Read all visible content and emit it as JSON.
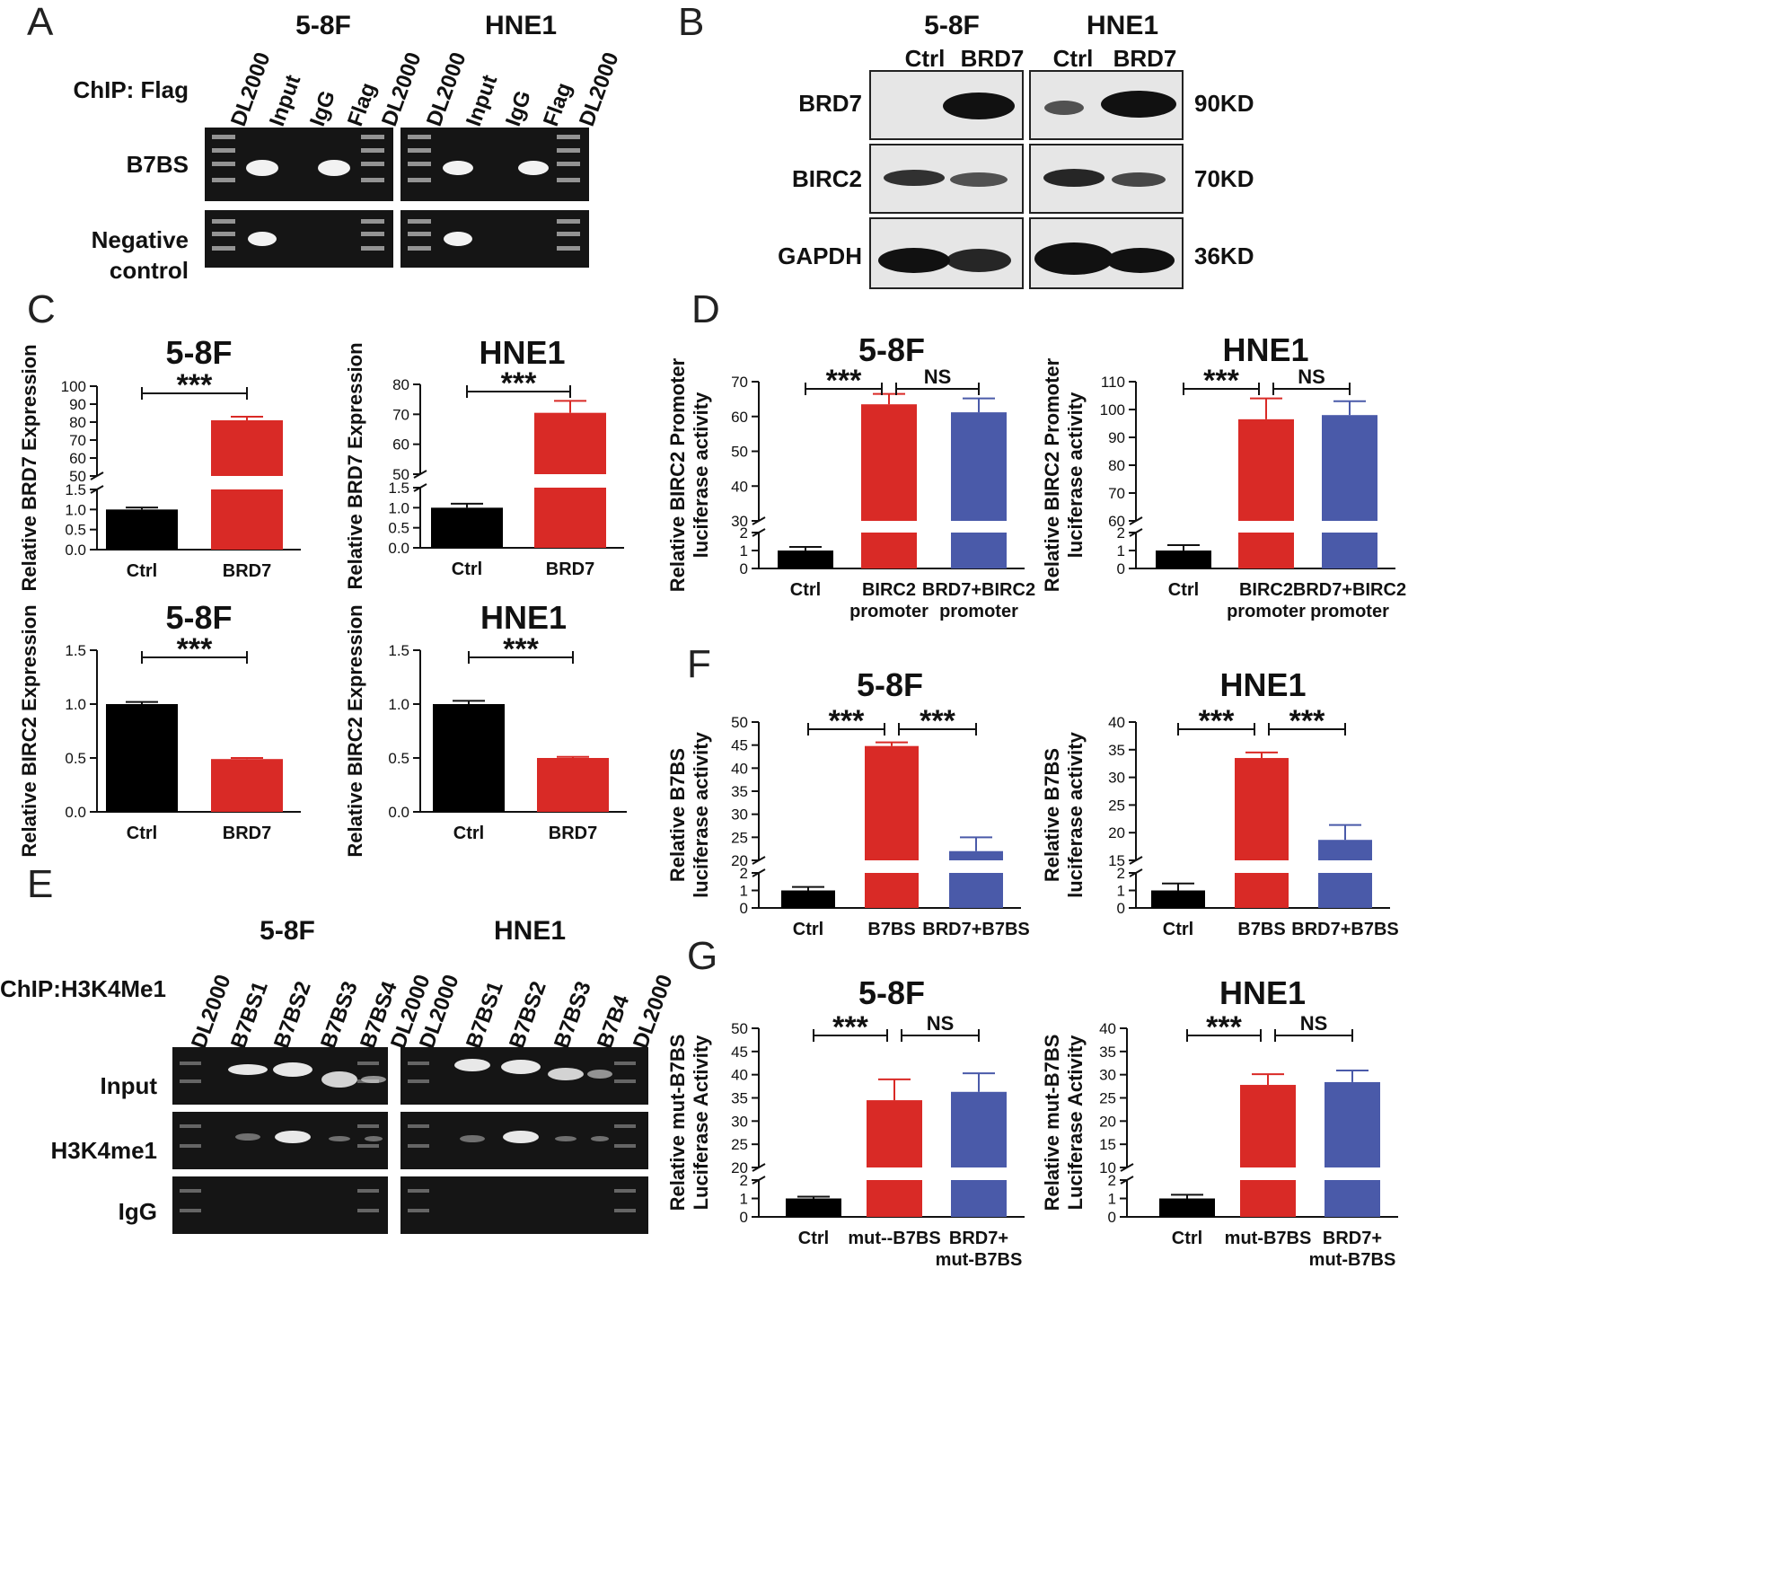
{
  "panel_letters": [
    "A",
    "B",
    "C",
    "D",
    "E",
    "F",
    "G"
  ],
  "panelA": {
    "cell_lines": [
      "5-8F",
      "HNE1"
    ],
    "chip_label": "ChIP: Flag",
    "lanes": [
      "DL2000",
      "Input",
      "IgG",
      "Flag",
      "DL2000"
    ],
    "rows": [
      "B7BS",
      "Negative control"
    ]
  },
  "panelB": {
    "cell_lines": [
      "5-8F",
      "HNE1"
    ],
    "conditions": [
      "Ctrl",
      "BRD7"
    ],
    "proteins": [
      {
        "name": "BRD7",
        "kd": "90KD"
      },
      {
        "name": "BIRC2",
        "kd": "70KD"
      },
      {
        "name": "GAPDH",
        "kd": "36KD"
      }
    ]
  },
  "panelE": {
    "cell_lines": [
      "5-8F",
      "HNE1"
    ],
    "chip_label": "ChIP:H3K4Me1",
    "lanes_5_8F": [
      "DL2000",
      "B7BS1",
      "B7BS2",
      "B7BS3",
      "B7BS4",
      "DL2000"
    ],
    "lanes_HNE1": [
      "DL2000",
      "B7BS1",
      "B7BS2",
      "B7BS3",
      "B7B4",
      "DL2000"
    ],
    "rows": [
      "Input",
      "H3K4me1",
      "IgG"
    ]
  },
  "colors": {
    "ctrl": "#000000",
    "red": "#d92a26",
    "blue": "#4a5aa9"
  },
  "chart_data": [
    {
      "id": "C1",
      "type": "bar",
      "title": "5-8F",
      "ylabel": "Relative BRD7 Expression",
      "categories": [
        "Ctrl",
        "BRD7"
      ],
      "values": [
        1.0,
        81
      ],
      "errors": [
        0.05,
        2
      ],
      "colors": [
        "ctrl",
        "red"
      ],
      "broken_axis": {
        "lower": [
          0,
          1.5
        ],
        "upper": [
          50,
          100
        ]
      },
      "lower_ticks": [
        "0.0",
        "0.5",
        "1.0",
        "1.5"
      ],
      "upper_ticks": [
        "50",
        "60",
        "70",
        "80",
        "90",
        "100"
      ],
      "significance": [
        {
          "from": 0,
          "to": 1,
          "label": "***"
        }
      ]
    },
    {
      "id": "C2",
      "type": "bar",
      "title": "HNE1",
      "ylabel": "Relative BRD7 Expression",
      "categories": [
        "Ctrl",
        "BRD7"
      ],
      "values": [
        1.0,
        70.5
      ],
      "errors": [
        0.1,
        4
      ],
      "colors": [
        "ctrl",
        "red"
      ],
      "broken_axis": {
        "lower": [
          0,
          1.5
        ],
        "upper": [
          50,
          80
        ]
      },
      "lower_ticks": [
        "0.0",
        "0.5",
        "1.0",
        "1.5"
      ],
      "upper_ticks": [
        "50",
        "60",
        "70",
        "80"
      ],
      "significance": [
        {
          "from": 0,
          "to": 1,
          "label": "***"
        }
      ]
    },
    {
      "id": "C3",
      "type": "bar",
      "title": "5-8F",
      "ylabel": "Relative BIRC2 Expression",
      "categories": [
        "Ctrl",
        "BRD7"
      ],
      "values": [
        1.0,
        0.49
      ],
      "errors": [
        0.02,
        0.01
      ],
      "colors": [
        "ctrl",
        "red"
      ],
      "ylim": [
        0,
        1.5
      ],
      "ticks": [
        "0.0",
        "0.5",
        "1.0",
        "1.5"
      ],
      "significance": [
        {
          "from": 0,
          "to": 1,
          "label": "***"
        }
      ]
    },
    {
      "id": "C4",
      "type": "bar",
      "title": "HNE1",
      "ylabel": "Relative BIRC2 Expression",
      "categories": [
        "Ctrl",
        "BRD7"
      ],
      "values": [
        1.0,
        0.5
      ],
      "errors": [
        0.03,
        0.01
      ],
      "colors": [
        "ctrl",
        "red"
      ],
      "ylim": [
        0,
        1.5
      ],
      "ticks": [
        "0.0",
        "0.5",
        "1.0",
        "1.5"
      ],
      "significance": [
        {
          "from": 0,
          "to": 1,
          "label": "***"
        }
      ]
    },
    {
      "id": "D1",
      "type": "bar",
      "title": "5-8F",
      "ylabel": "Relative BIRC2 Promoter luciferase activity",
      "categories": [
        "Ctrl",
        "BIRC2 promoter",
        "BRD7+BIRC2 promoter"
      ],
      "values": [
        1.0,
        63.5,
        61.2
      ],
      "errors": [
        0.2,
        3,
        4
      ],
      "colors": [
        "ctrl",
        "red",
        "blue"
      ],
      "broken_axis": {
        "lower": [
          0,
          2
        ],
        "upper": [
          30,
          70
        ]
      },
      "lower_ticks": [
        "0",
        "1",
        "2"
      ],
      "upper_ticks": [
        "30",
        "40",
        "50",
        "60",
        "70"
      ],
      "significance": [
        {
          "from": 0,
          "to": 1,
          "label": "***"
        },
        {
          "from": 1,
          "to": 2,
          "label": "NS"
        }
      ]
    },
    {
      "id": "D2",
      "type": "bar",
      "title": "HNE1",
      "ylabel": "Relative BIRC2 Promoter luciferase activity",
      "categories": [
        "Ctrl",
        "BIRC2 promoter",
        "BRD7+BIRC2 promoter"
      ],
      "values": [
        1.0,
        96.5,
        98
      ],
      "errors": [
        0.3,
        7.5,
        5
      ],
      "colors": [
        "ctrl",
        "red",
        "blue"
      ],
      "broken_axis": {
        "lower": [
          0,
          2
        ],
        "upper": [
          60,
          110
        ]
      },
      "lower_ticks": [
        "0",
        "1",
        "2"
      ],
      "upper_ticks": [
        "60",
        "70",
        "80",
        "90",
        "100",
        "110"
      ],
      "significance": [
        {
          "from": 0,
          "to": 1,
          "label": "***"
        },
        {
          "from": 1,
          "to": 2,
          "label": "NS"
        }
      ]
    },
    {
      "id": "F1",
      "type": "bar",
      "title": "5-8F",
      "ylabel": "Relative B7BS luciferase activity",
      "categories": [
        "Ctrl",
        "B7BS",
        "BRD7+B7BS"
      ],
      "values": [
        1.0,
        44.8,
        22
      ],
      "errors": [
        0.2,
        0.8,
        3
      ],
      "colors": [
        "ctrl",
        "red",
        "blue"
      ],
      "broken_axis": {
        "lower": [
          0,
          2
        ],
        "upper": [
          20,
          50
        ]
      },
      "lower_ticks": [
        "0",
        "1",
        "2"
      ],
      "upper_ticks": [
        "20",
        "25",
        "30",
        "35",
        "40",
        "45",
        "50"
      ],
      "significance": [
        {
          "from": 0,
          "to": 1,
          "label": "***"
        },
        {
          "from": 1,
          "to": 2,
          "label": "***"
        }
      ]
    },
    {
      "id": "F2",
      "type": "bar",
      "title": "HNE1",
      "ylabel": "Relative B7BS luciferase activity",
      "categories": [
        "Ctrl",
        "B7BS",
        "BRD7+B7BS"
      ],
      "values": [
        1.0,
        33.5,
        18.7
      ],
      "errors": [
        0.4,
        1,
        2.7
      ],
      "colors": [
        "ctrl",
        "red",
        "blue"
      ],
      "broken_axis": {
        "lower": [
          0,
          2
        ],
        "upper": [
          15,
          40
        ]
      },
      "lower_ticks": [
        "0",
        "1",
        "2"
      ],
      "upper_ticks": [
        "15",
        "20",
        "25",
        "30",
        "35",
        "40"
      ],
      "significance": [
        {
          "from": 0,
          "to": 1,
          "label": "***"
        },
        {
          "from": 1,
          "to": 2,
          "label": "***"
        }
      ]
    },
    {
      "id": "G1",
      "type": "bar",
      "title": "5-8F",
      "ylabel": "Relative mut-B7BS Luciferase Activity",
      "categories": [
        "Ctrl",
        "mut--B7BS",
        "BRD7+ mut-B7BS"
      ],
      "values": [
        1.0,
        34.5,
        36.3
      ],
      "errors": [
        0.1,
        4.5,
        4
      ],
      "colors": [
        "ctrl",
        "red",
        "blue"
      ],
      "broken_axis": {
        "lower": [
          0,
          2
        ],
        "upper": [
          20,
          50
        ]
      },
      "lower_ticks": [
        "0",
        "1",
        "2"
      ],
      "upper_ticks": [
        "20",
        "25",
        "30",
        "35",
        "40",
        "45",
        "50"
      ],
      "significance": [
        {
          "from": 0,
          "to": 1,
          "label": "***"
        },
        {
          "from": 1,
          "to": 2,
          "label": "NS"
        }
      ]
    },
    {
      "id": "G2",
      "type": "bar",
      "title": "HNE1",
      "ylabel": "Relative mut-B7BS Luciferase Activity",
      "categories": [
        "Ctrl",
        "mut-B7BS",
        "BRD7+ mut-B7BS"
      ],
      "values": [
        1.0,
        27.8,
        28.4
      ],
      "errors": [
        0.2,
        2.3,
        2.5
      ],
      "colors": [
        "ctrl",
        "red",
        "blue"
      ],
      "broken_axis": {
        "lower": [
          0,
          2
        ],
        "upper": [
          10,
          40
        ]
      },
      "lower_ticks": [
        "0",
        "1",
        "2"
      ],
      "upper_ticks": [
        "10",
        "15",
        "20",
        "25",
        "30",
        "35",
        "40"
      ],
      "significance": [
        {
          "from": 0,
          "to": 1,
          "label": "***"
        },
        {
          "from": 1,
          "to": 2,
          "label": "NS"
        }
      ]
    }
  ]
}
